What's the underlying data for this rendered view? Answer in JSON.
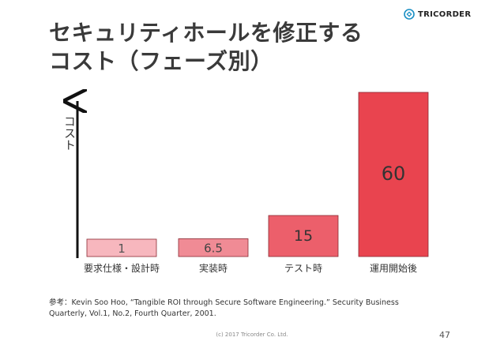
{
  "slide": {
    "title_line1": "セキュリティホールを修正する",
    "title_line2": "コスト（フェーズ別）",
    "brand": "TRICORDER",
    "footnote_line1": "参考：Kevin Soo Hoo, “Tangible ROI through Secure Software Engineering.” Security Business",
    "footnote_line2": "Quarterly, Vol.1, No.2, Fourth Quarter, 2001.",
    "copyright": "(c) 2017 Tricorder Co. Ltd.",
    "page_number": "47"
  },
  "chart_data": {
    "type": "bar",
    "categories": [
      "要求仕様・設計時",
      "実装時",
      "テスト時",
      "運用開始後"
    ],
    "values": [
      1,
      6.5,
      15,
      60
    ],
    "value_labels": [
      "1",
      "6.5",
      "15",
      "60"
    ],
    "ylabel": "コスト",
    "colors": [
      "#f7b7be",
      "#f08b95",
      "#ec5f6b",
      "#e9444f"
    ],
    "label_colors": [
      "#555555",
      "#444444",
      "#333333",
      "#333333"
    ],
    "axis_color": "#111111",
    "grid": false,
    "legend": "none"
  }
}
